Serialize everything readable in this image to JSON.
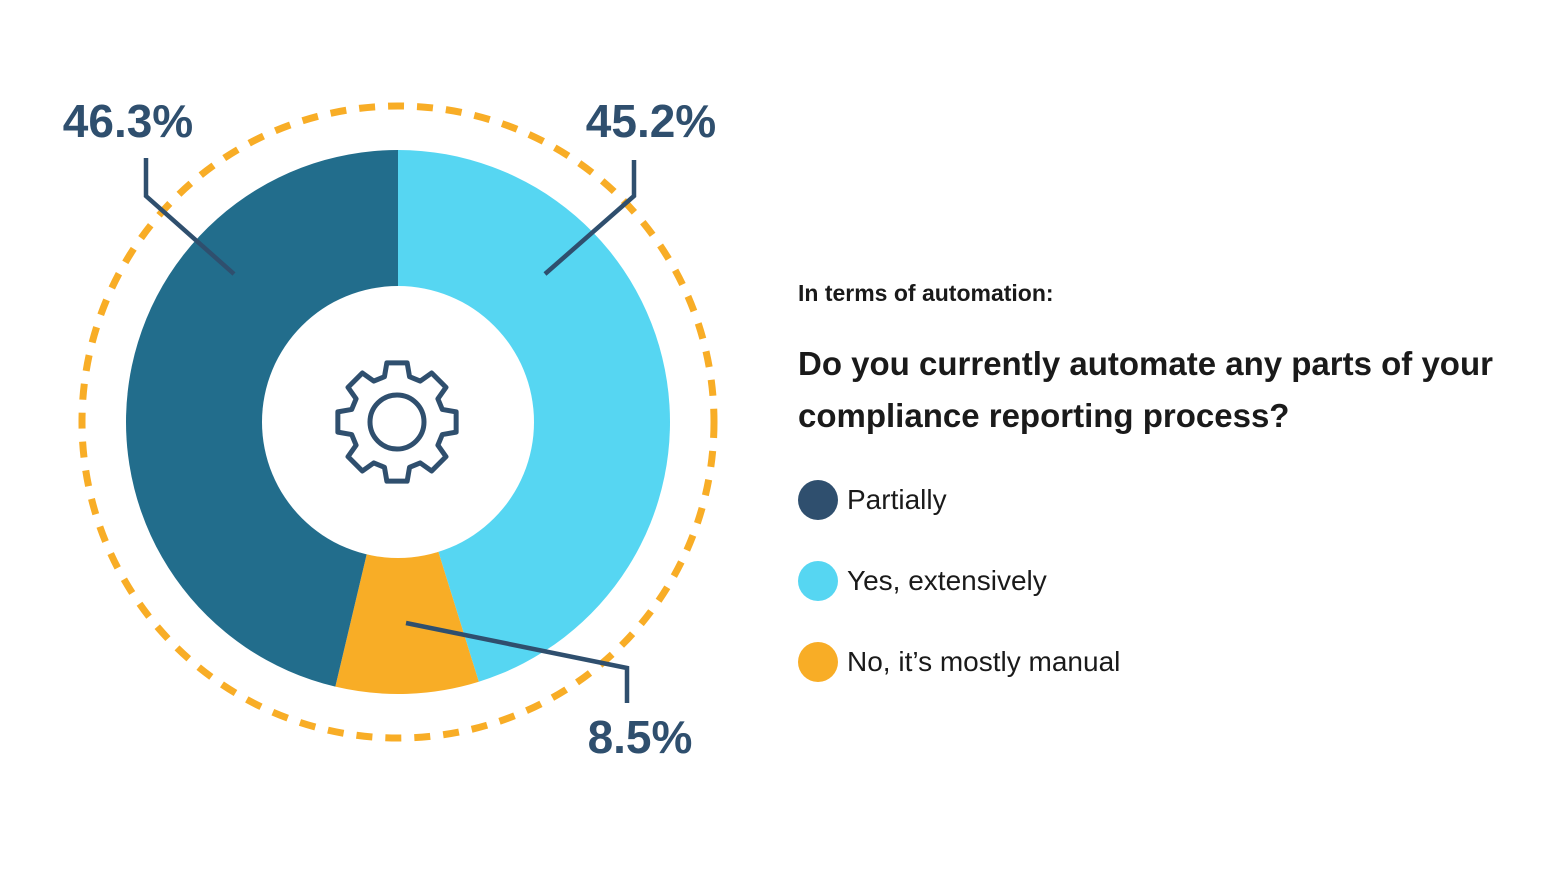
{
  "chart_data": {
    "type": "pie",
    "subtitle": "In terms of automation:",
    "question": "Do you currently automate any parts of your compliance reporting process?",
    "slices": [
      {
        "label": "Partially",
        "value": 46.3,
        "display": "46.3%",
        "color": "#226d8c",
        "legend_color": "#2f4f6e"
      },
      {
        "label": "Yes, extensively",
        "value": 45.2,
        "display": "45.2%",
        "color": "#56d6f2",
        "legend_color": "#56d6f2"
      },
      {
        "label": "No, it’s mostly manual",
        "value": 8.5,
        "display": "8.5%",
        "color": "#f8ad26",
        "legend_color": "#f8ad26"
      }
    ],
    "center_icon": "gear-icon",
    "ring_color": "#f8ad26",
    "label_color": "#2f4f6e"
  }
}
